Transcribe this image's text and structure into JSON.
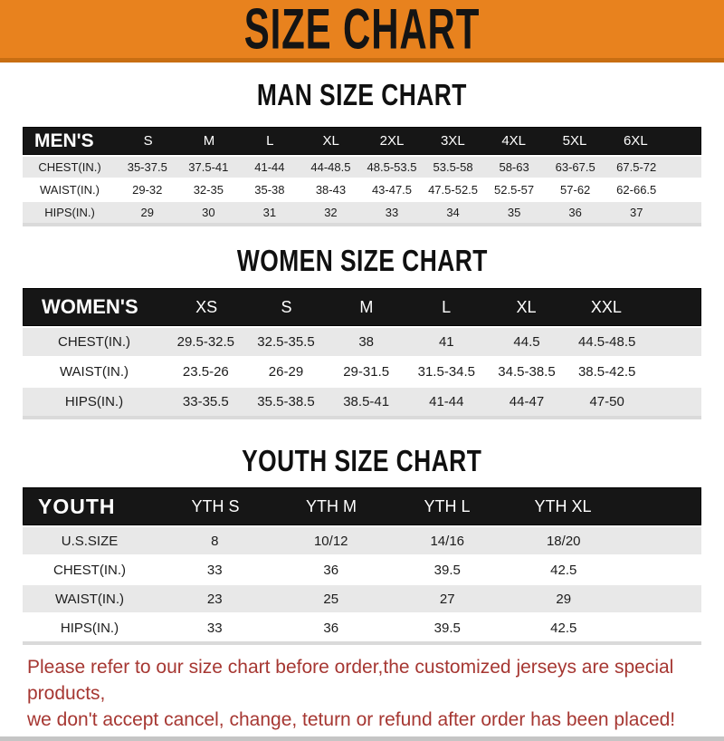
{
  "banner": {
    "title": "SIZE CHART"
  },
  "colors": {
    "banner_bg": "#E8821E",
    "banner_edge": "#C86E12",
    "header_bar_bg": "#161616",
    "row_shade": "#E8E8E8",
    "footer_text": "#A63732"
  },
  "sections": [
    {
      "heading": "MAN SIZE CHART",
      "table": {
        "header_label": "MEN'S",
        "columns": [
          "S",
          "M",
          "L",
          "XL",
          "2XL",
          "3XL",
          "4XL",
          "5XL",
          "6XL"
        ],
        "rows": [
          {
            "label": "CHEST(IN.)",
            "values": [
              "35-37.5",
              "37.5-41",
              "41-44",
              "44-48.5",
              "48.5-53.5",
              "53.5-58",
              "58-63",
              "63-67.5",
              "67.5-72"
            ]
          },
          {
            "label": "WAIST(IN.)",
            "values": [
              "29-32",
              "32-35",
              "35-38",
              "38-43",
              "43-47.5",
              "47.5-52.5",
              "52.5-57",
              "57-62",
              "62-66.5"
            ]
          },
          {
            "label": "HIPS(IN.)",
            "values": [
              "29",
              "30",
              "31",
              "32",
              "33",
              "34",
              "35",
              "36",
              "37"
            ]
          }
        ]
      }
    },
    {
      "heading": "WOMEN SIZE CHART",
      "table": {
        "header_label": "WOMEN'S",
        "columns": [
          "XS",
          "S",
          "M",
          "L",
          "XL",
          "XXL"
        ],
        "rows": [
          {
            "label": "CHEST(IN.)",
            "values": [
              "29.5-32.5",
              "32.5-35.5",
              "38",
              "41",
              "44.5",
              "44.5-48.5"
            ]
          },
          {
            "label": "WAIST(IN.)",
            "values": [
              "23.5-26",
              "26-29",
              "29-31.5",
              "31.5-34.5",
              "34.5-38.5",
              "38.5-42.5"
            ]
          },
          {
            "label": "HIPS(IN.)",
            "values": [
              "33-35.5",
              "35.5-38.5",
              "38.5-41",
              "41-44",
              "44-47",
              "47-50"
            ]
          }
        ]
      }
    },
    {
      "heading": "YOUTH SIZE CHART",
      "table": {
        "header_label": "YOUTH",
        "columns": [
          "YTH S",
          "YTH M",
          "YTH L",
          "YTH XL"
        ],
        "rows": [
          {
            "label": "U.S.SIZE",
            "values": [
              "8",
              "10/12",
              "14/16",
              "18/20"
            ]
          },
          {
            "label": "CHEST(IN.)",
            "values": [
              "33",
              "36",
              "39.5",
              "42.5"
            ]
          },
          {
            "label": "WAIST(IN.)",
            "values": [
              "23",
              "25",
              "27",
              "29"
            ]
          },
          {
            "label": "HIPS(IN.)",
            "values": [
              "33",
              "36",
              "39.5",
              "42.5"
            ]
          }
        ]
      }
    }
  ],
  "footer": {
    "line1": "Please refer to our size chart before order,the customized jerseys are special products,",
    "line2": "we don't accept cancel, change, teturn or refund after order has been placed!"
  }
}
